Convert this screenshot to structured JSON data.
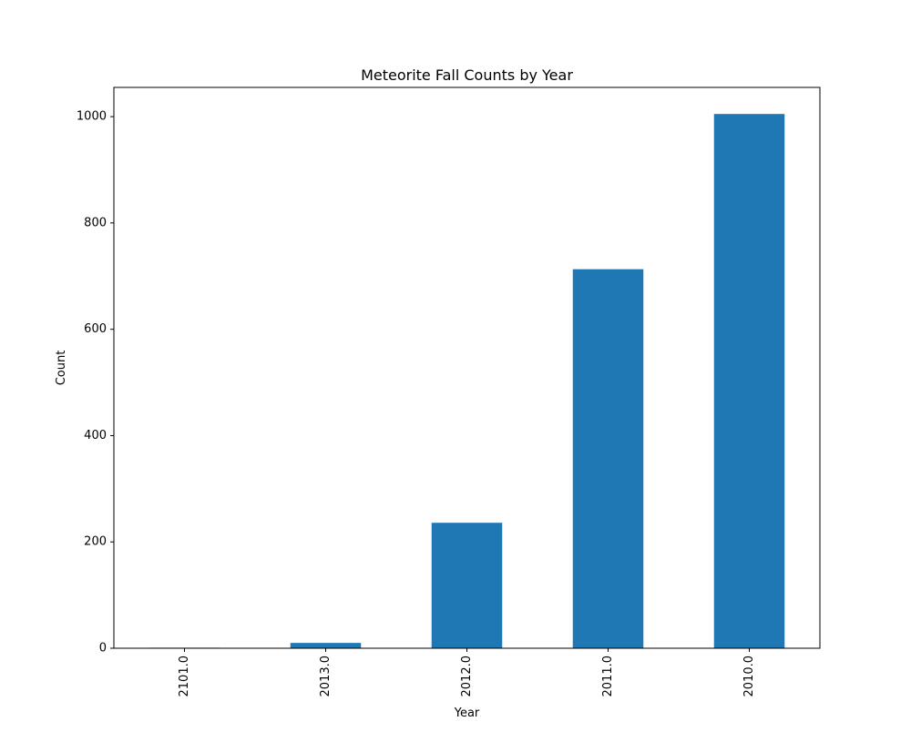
{
  "chart_data": {
    "type": "bar",
    "title": "Meteorite Fall Counts by Year",
    "xlabel": "Year",
    "ylabel": "Count",
    "categories": [
      "2101.0",
      "2013.0",
      "2012.0",
      "2011.0",
      "2010.0"
    ],
    "values": [
      1,
      10,
      236,
      713,
      1005
    ],
    "ylim": [
      0,
      1055
    ],
    "yticks": [
      0,
      200,
      400,
      600,
      800,
      1000
    ],
    "ytick_labels": [
      "0",
      "200",
      "400",
      "600",
      "800",
      "1000"
    ],
    "xtick_rotation": "vertical",
    "grid": false,
    "legend": "none",
    "bar_color": "#1f77b4"
  }
}
